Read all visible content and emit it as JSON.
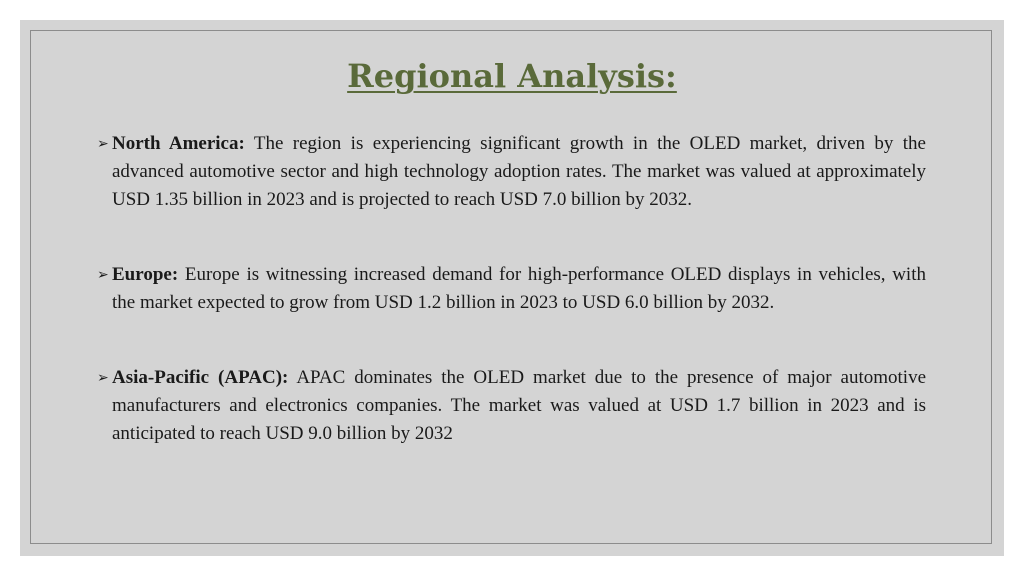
{
  "slide": {
    "title": "Regional Analysis:"
  },
  "bullets": [
    {
      "icon": "arrow-bullet-icon",
      "label": "North America:",
      "text": "The region is experiencing significant growth in the OLED market, driven by the advanced automotive sector and high technology adoption rates. The market was valued at approximately USD 1.35 billion in 2023 and is projected to reach USD 7.0 billion by 2032."
    },
    {
      "icon": "arrow-bullet-icon",
      "label": "Europe:",
      "text": "Europe is witnessing increased demand for high-performance OLED displays in vehicles, with the market expected to grow from USD 1.2 billion in 2023 to USD 6.0 billion by 2032."
    },
    {
      "icon": "arrow-bullet-icon",
      "label": "Asia-Pacific (APAC):",
      "text": "APAC dominates the OLED market due to the presence of major automotive manufacturers and electronics companies. The market was valued at USD 1.7 billion in 2023 and is anticipated to reach USD 9.0 billion by 2032"
    }
  ],
  "colors": {
    "title": "#5a6a3a",
    "background": "#d4d4d4",
    "border": "#8c8c8c"
  }
}
